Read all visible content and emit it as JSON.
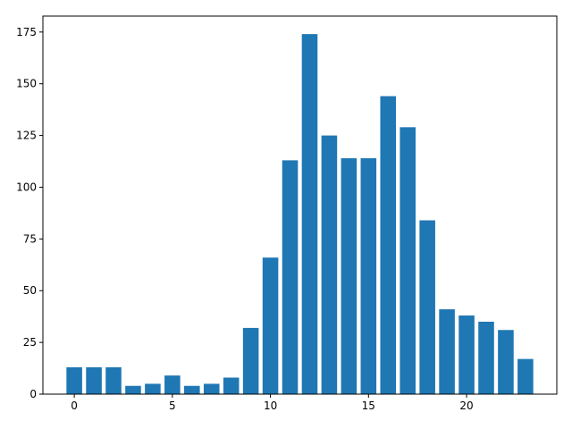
{
  "chart_data": {
    "type": "bar",
    "x": [
      0,
      1,
      2,
      3,
      4,
      5,
      6,
      7,
      8,
      9,
      10,
      11,
      12,
      13,
      14,
      15,
      16,
      17,
      18,
      19,
      20,
      21,
      22,
      23
    ],
    "values": [
      13,
      13,
      13,
      4,
      5,
      9,
      4,
      5,
      8,
      32,
      66,
      113,
      174,
      125,
      114,
      114,
      144,
      129,
      84,
      41,
      38,
      35,
      31,
      17
    ],
    "title": "",
    "xlabel": "",
    "ylabel": "",
    "xlim": [
      -1.6,
      24.6
    ],
    "ylim": [
      0,
      182.7
    ],
    "xticks": [
      0,
      5,
      10,
      15,
      20
    ],
    "xtick_labels": [
      "0",
      "5",
      "10",
      "15",
      "20"
    ],
    "yticks": [
      0,
      25,
      50,
      75,
      100,
      125,
      150,
      175
    ],
    "ytick_labels": [
      "0",
      "25",
      "50",
      "75",
      "100",
      "125",
      "150",
      "175"
    ],
    "bar_color": "#1f77b4",
    "grid": false,
    "legend": "none"
  }
}
